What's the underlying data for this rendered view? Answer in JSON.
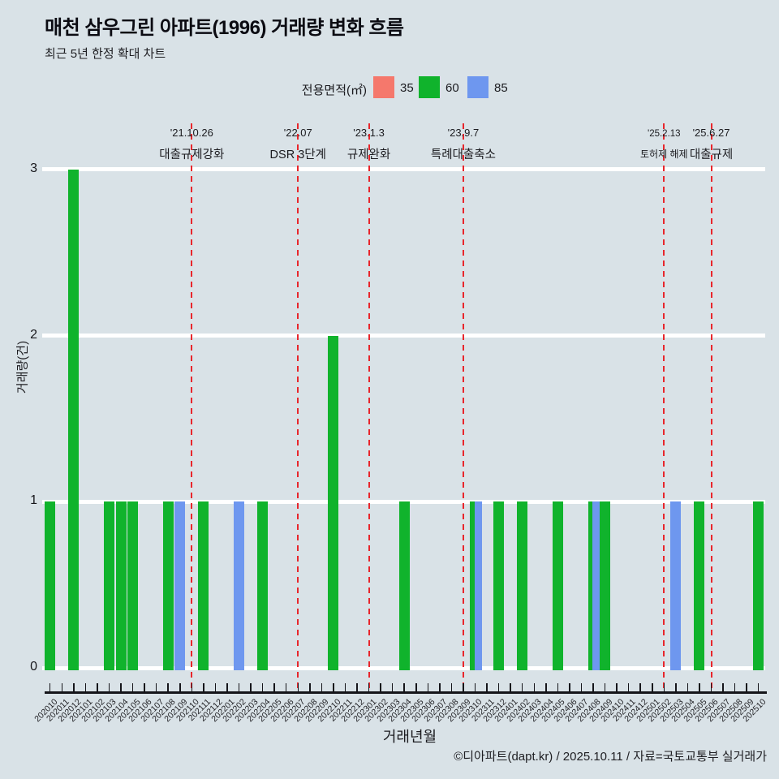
{
  "chart_data": {
    "type": "bar",
    "title": "매천 삼우그린 아파트(1996) 거래량 변화 흐름",
    "subtitle": "최근 5년 한정 확대 차트",
    "legend_title": "전용면적(㎡)",
    "xlabel": "거래년월",
    "ylabel": "거래량(건)",
    "ylim": [
      0,
      3
    ],
    "yticks": [
      "0",
      "1",
      "2",
      "3"
    ],
    "grid": true,
    "legend_position": "top",
    "categories": [
      "202010",
      "202011",
      "202012",
      "202101",
      "202102",
      "202103",
      "202104",
      "202105",
      "202106",
      "202107",
      "202108",
      "202109",
      "202110",
      "202111",
      "202112",
      "202201",
      "202202",
      "202203",
      "202204",
      "202205",
      "202206",
      "202207",
      "202208",
      "202209",
      "202210",
      "202211",
      "202212",
      "202301",
      "202302",
      "202303",
      "202304",
      "202305",
      "202306",
      "202307",
      "202308",
      "202309",
      "202310",
      "202311",
      "202312",
      "202401",
      "202402",
      "202403",
      "202404",
      "202405",
      "202406",
      "202407",
      "202408",
      "202409",
      "202410",
      "202411",
      "202412",
      "202501",
      "202502",
      "202503",
      "202504",
      "202505",
      "202506",
      "202507",
      "202508",
      "202509",
      "202510"
    ],
    "series": [
      {
        "name": "35",
        "color": "#f5786c",
        "points": {}
      },
      {
        "name": "60",
        "color": "#10b32c",
        "points": {
          "202010": 1,
          "202012": 3,
          "202103": 1,
          "202104": 1,
          "202105": 1,
          "202108": 1,
          "202111": 1,
          "202204": 1,
          "202210": 2,
          "202304": 1,
          "202310": 1,
          "202312": 1,
          "202402": 1,
          "202405": 1,
          "202408": 1,
          "202409": 1,
          "202505": 1,
          "202510": 1
        }
      },
      {
        "name": "85",
        "color": "#6e97ef",
        "points": {
          "202109": 1,
          "202202": 1,
          "202310": 1,
          "202408": 1,
          "202503": 1
        }
      }
    ],
    "annotations": [
      {
        "month": "202110",
        "date": "'21.10.26",
        "label": "대출규제강화",
        "small": false
      },
      {
        "month": "202207",
        "date": "'22.07",
        "label": "DSR 3단계",
        "small": false
      },
      {
        "month": "202301",
        "date": "'23.1.3",
        "label": "규제완화",
        "small": false
      },
      {
        "month": "202309",
        "date": "'23.9.7",
        "label": "특례대출축소",
        "small": false
      },
      {
        "month": "202502",
        "date": "'25.2.13",
        "label": "토허제 해제",
        "small": true
      },
      {
        "month": "202506",
        "date": "'25.6.27",
        "label": "대출규제",
        "small": false
      }
    ],
    "annotation_line_color": "#e8262c"
  },
  "footer": {
    "text": "©디아파트(dapt.kr) / 2025.10.11 / 자료=국토교통부 실거래가"
  }
}
